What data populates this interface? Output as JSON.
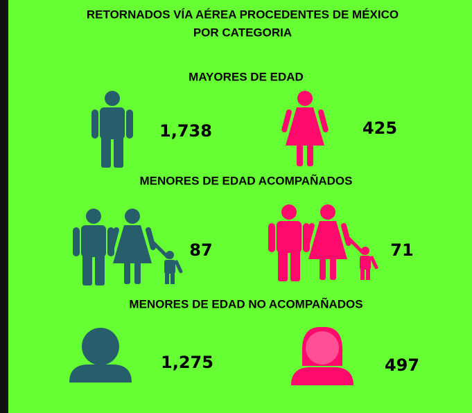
{
  "header": {
    "title_lines": [
      "RETORNADOS VÍA AÉREA PROCEDENTES DE MÉXICO",
      "POR CATEGORIA"
    ]
  },
  "sections": [
    {
      "heading": "MAYORES DE EDAD",
      "male": "1,738",
      "female": "425"
    },
    {
      "heading": "MENORES DE EDAD ACOMPAÑADOS",
      "male": "87",
      "female": "71"
    },
    {
      "heading": "MENORES DE EDAD NO ACOMPAÑADOS",
      "male": "1,275",
      "female": "497"
    }
  ]
}
